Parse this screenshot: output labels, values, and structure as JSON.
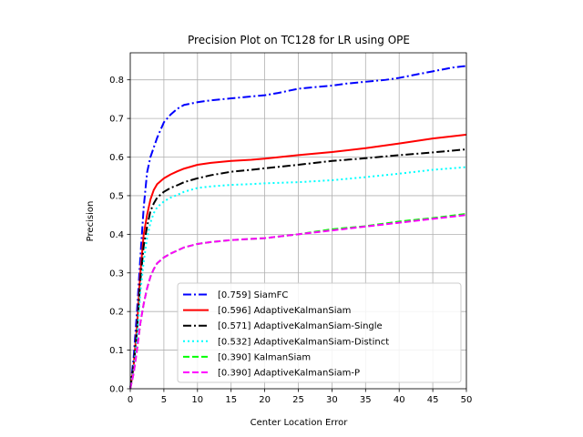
{
  "chart_data": {
    "type": "line",
    "title": "Precision Plot on TC128 for LR using OPE",
    "xlabel": "Center Location Error",
    "ylabel": "Precision",
    "xlim": [
      0,
      50
    ],
    "ylim": [
      0,
      0.87
    ],
    "xticks": [
      0,
      5,
      10,
      15,
      20,
      25,
      30,
      35,
      40,
      45,
      50
    ],
    "yticks": [
      0.0,
      0.1,
      0.2,
      0.3,
      0.4,
      0.5,
      0.6,
      0.7,
      0.8
    ],
    "grid": true,
    "legend_position": "lower-right",
    "series": [
      {
        "name": "[0.759] SiamFC",
        "color": "#0000ff",
        "dash": "dashdot",
        "x": [
          0,
          0.5,
          1,
          1.5,
          2,
          2.5,
          3,
          4,
          5,
          6,
          7,
          8,
          10,
          12,
          15,
          18,
          20,
          22,
          25,
          28,
          30,
          32,
          35,
          38,
          40,
          42,
          45,
          48,
          50
        ],
        "y": [
          0.0,
          0.08,
          0.2,
          0.34,
          0.47,
          0.56,
          0.6,
          0.65,
          0.69,
          0.71,
          0.725,
          0.735,
          0.742,
          0.747,
          0.752,
          0.757,
          0.76,
          0.766,
          0.777,
          0.782,
          0.785,
          0.79,
          0.795,
          0.8,
          0.805,
          0.812,
          0.822,
          0.832,
          0.836
        ]
      },
      {
        "name": "[0.596] AdaptiveKalmanSiam",
        "color": "#ff0000",
        "dash": "solid",
        "x": [
          0,
          0.5,
          1,
          1.5,
          2,
          2.5,
          3,
          3.5,
          4,
          5,
          6,
          7,
          8,
          10,
          12,
          15,
          18,
          20,
          25,
          30,
          35,
          40,
          45,
          50
        ],
        "y": [
          0.0,
          0.06,
          0.16,
          0.3,
          0.4,
          0.45,
          0.49,
          0.515,
          0.53,
          0.545,
          0.555,
          0.563,
          0.57,
          0.58,
          0.585,
          0.59,
          0.593,
          0.596,
          0.605,
          0.613,
          0.623,
          0.635,
          0.648,
          0.658
        ]
      },
      {
        "name": "[0.571] AdaptiveKalmanSiam-Single",
        "color": "#000000",
        "dash": "dashdot",
        "x": [
          0,
          0.5,
          1,
          1.5,
          2,
          2.5,
          3,
          3.5,
          4,
          5,
          6,
          7,
          8,
          10,
          12,
          15,
          18,
          20,
          25,
          30,
          35,
          40,
          45,
          50
        ],
        "y": [
          0.0,
          0.06,
          0.15,
          0.28,
          0.37,
          0.42,
          0.46,
          0.48,
          0.495,
          0.51,
          0.52,
          0.527,
          0.535,
          0.545,
          0.553,
          0.562,
          0.567,
          0.571,
          0.58,
          0.59,
          0.597,
          0.605,
          0.612,
          0.62
        ]
      },
      {
        "name": "[0.532] AdaptiveKalmanSiam-Distinct",
        "color": "#00ffff",
        "dash": "dotted",
        "x": [
          0,
          0.5,
          1,
          1.5,
          2,
          2.5,
          3,
          3.5,
          4,
          5,
          6,
          7,
          8,
          10,
          12,
          15,
          18,
          20,
          25,
          30,
          35,
          40,
          45,
          50
        ],
        "y": [
          0.0,
          0.05,
          0.13,
          0.25,
          0.33,
          0.39,
          0.43,
          0.455,
          0.47,
          0.485,
          0.495,
          0.502,
          0.51,
          0.52,
          0.524,
          0.528,
          0.53,
          0.532,
          0.535,
          0.54,
          0.548,
          0.557,
          0.567,
          0.574
        ]
      },
      {
        "name": "[0.390] KalmanSiam",
        "color": "#00ff00",
        "dash": "dashed",
        "x": [
          0,
          0.5,
          1,
          1.5,
          2,
          2.5,
          3,
          3.5,
          4,
          5,
          6,
          7,
          8,
          10,
          12,
          15,
          18,
          20,
          22,
          25,
          30,
          35,
          40,
          45,
          50
        ],
        "y": [
          0.0,
          0.04,
          0.1,
          0.17,
          0.22,
          0.26,
          0.29,
          0.31,
          0.325,
          0.34,
          0.35,
          0.358,
          0.366,
          0.375,
          0.38,
          0.385,
          0.388,
          0.39,
          0.394,
          0.4,
          0.413,
          0.421,
          0.433,
          0.442,
          0.453
        ]
      },
      {
        "name": "[0.390] AdaptiveKalmanSiam-P",
        "color": "#ff00ff",
        "dash": "dashed",
        "x": [
          0,
          0.5,
          1,
          1.5,
          2,
          2.5,
          3,
          3.5,
          4,
          5,
          6,
          7,
          8,
          10,
          12,
          15,
          18,
          20,
          22,
          25,
          30,
          35,
          40,
          45,
          50
        ],
        "y": [
          0.0,
          0.04,
          0.1,
          0.17,
          0.22,
          0.26,
          0.29,
          0.31,
          0.325,
          0.34,
          0.35,
          0.358,
          0.366,
          0.375,
          0.38,
          0.385,
          0.388,
          0.39,
          0.394,
          0.4,
          0.41,
          0.42,
          0.43,
          0.44,
          0.45
        ]
      }
    ]
  }
}
